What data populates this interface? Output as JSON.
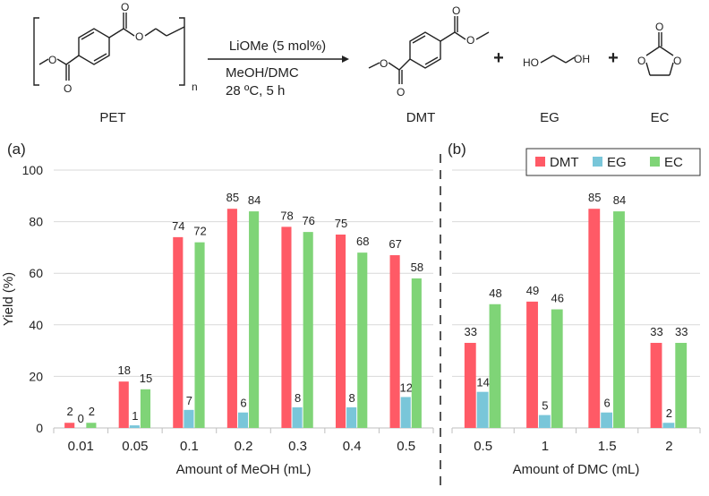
{
  "scheme": {
    "reagent": "LiOMe (5 mol%)",
    "solvent": "MeOH/DMC",
    "conditions": "28 ºC, 5 h",
    "polymer_label": "PET",
    "repeat_subscript": "n",
    "products": [
      "DMT",
      "EG",
      "EC"
    ],
    "plus": "+",
    "atom_o": "O",
    "atom_ho": "HO",
    "atom_oh": "OH"
  },
  "colors": {
    "DMT": "#ff5a66",
    "EG": "#79c6d9",
    "EC": "#7fd477"
  },
  "chart_data": [
    {
      "type": "bar",
      "panel_label": "(a)",
      "categories": [
        "0.01",
        "0.05",
        "0.1",
        "0.2",
        "0.3",
        "0.4",
        "0.5"
      ],
      "series": [
        {
          "name": "DMT",
          "values": [
            2,
            18,
            74,
            85,
            78,
            75,
            67
          ]
        },
        {
          "name": "EG",
          "values": [
            0,
            1,
            7,
            6,
            8,
            8,
            12
          ]
        },
        {
          "name": "EC",
          "values": [
            2,
            15,
            72,
            84,
            76,
            68,
            58
          ]
        }
      ],
      "xlabel": "Amount of MeOH (mL)",
      "ylabel": "Yield (%)",
      "ylim": [
        0,
        100
      ],
      "yticks": [
        0,
        20,
        40,
        60,
        80,
        100
      ],
      "grid": true
    },
    {
      "type": "bar",
      "panel_label": "(b)",
      "categories": [
        "0.5",
        "1",
        "1.5",
        "2"
      ],
      "series": [
        {
          "name": "DMT",
          "values": [
            33,
            49,
            85,
            33
          ]
        },
        {
          "name": "EG",
          "values": [
            14,
            5,
            6,
            2
          ]
        },
        {
          "name": "EC",
          "values": [
            48,
            46,
            84,
            33
          ]
        }
      ],
      "xlabel": "Amount of DMC (mL)",
      "ylim": [
        0,
        100
      ],
      "grid": true,
      "legend": "top-right"
    }
  ]
}
